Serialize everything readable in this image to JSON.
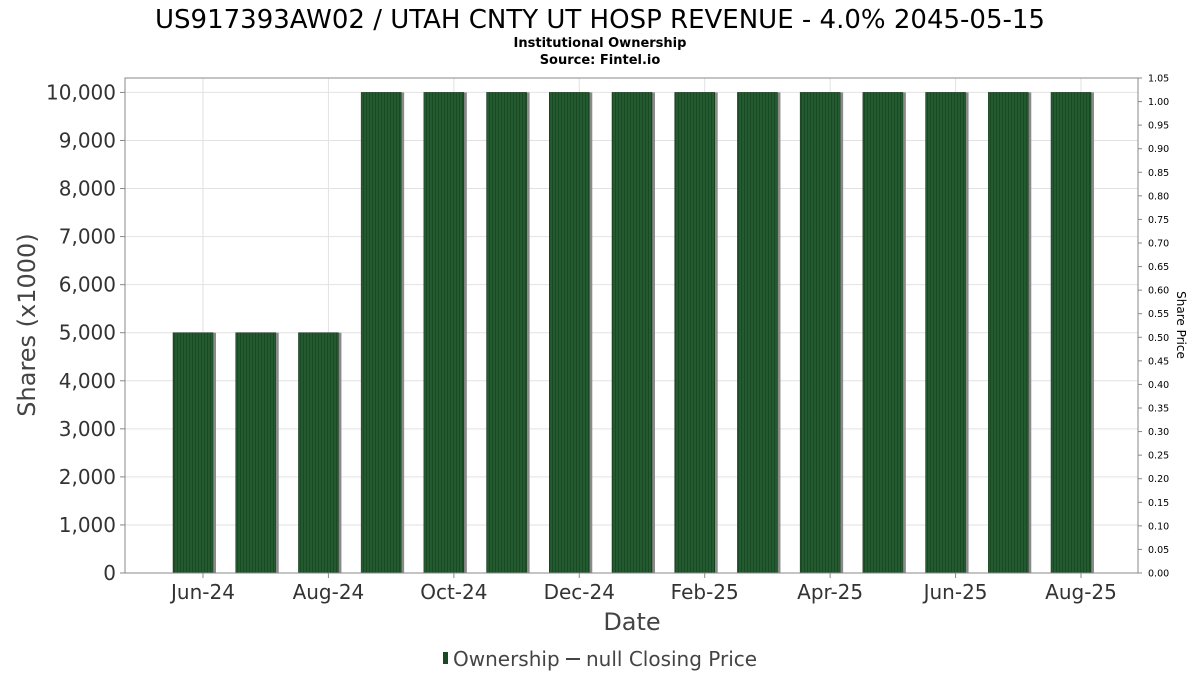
{
  "header": {
    "title": "US917393AW02 / UTAH CNTY UT HOSP REVENUE - 4.0% 2045-05-15",
    "subtitle": "Institutional Ownership",
    "source": "Source: Fintel.io"
  },
  "legend": {
    "ownership_label": "Ownership",
    "price_label": "null Closing Price"
  },
  "colors": {
    "bar": "#1a4a24",
    "bar_stripe": "#2f6a3a",
    "bar_shadow": "#8a8a8a",
    "grid": "#e2e2e2",
    "axis": "#888888"
  },
  "chart_data": {
    "type": "bar",
    "title": "US917393AW02 / UTAH CNTY UT HOSP REVENUE - 4.0% 2045-05-15",
    "subtitle": "Institutional Ownership",
    "xlabel": "Date",
    "ylabel": "Shares (x1000)",
    "y2label": "Share Price",
    "ylim": [
      0,
      10300
    ],
    "y2lim": [
      0,
      1.05
    ],
    "yticks": [
      "0",
      "1,000",
      "2,000",
      "3,000",
      "4,000",
      "5,000",
      "6,000",
      "7,000",
      "8,000",
      "9,000",
      "10,000"
    ],
    "ytick_values": [
      0,
      1000,
      2000,
      3000,
      4000,
      5000,
      6000,
      7000,
      8000,
      9000,
      10000
    ],
    "y2ticks": [
      "0.00",
      "0.05",
      "0.10",
      "0.15",
      "0.20",
      "0.25",
      "0.30",
      "0.35",
      "0.40",
      "0.45",
      "0.50",
      "0.55",
      "0.60",
      "0.65",
      "0.70",
      "0.75",
      "0.80",
      "0.85",
      "0.90",
      "0.95",
      "1.00",
      "1.05"
    ],
    "xticks": [
      "Jun-24",
      "Aug-24",
      "Oct-24",
      "Dec-24",
      "Feb-25",
      "Apr-25",
      "Jun-25",
      "Aug-25"
    ],
    "grid": true,
    "legend_position": "bottom",
    "series": [
      {
        "name": "Ownership",
        "values": [
          5000,
          5000,
          5000,
          10000,
          10000,
          10000,
          10000,
          10000,
          10000,
          10000,
          10000,
          10000,
          10000,
          10000,
          10000
        ]
      },
      {
        "name": "null Closing Price",
        "values": []
      }
    ]
  }
}
